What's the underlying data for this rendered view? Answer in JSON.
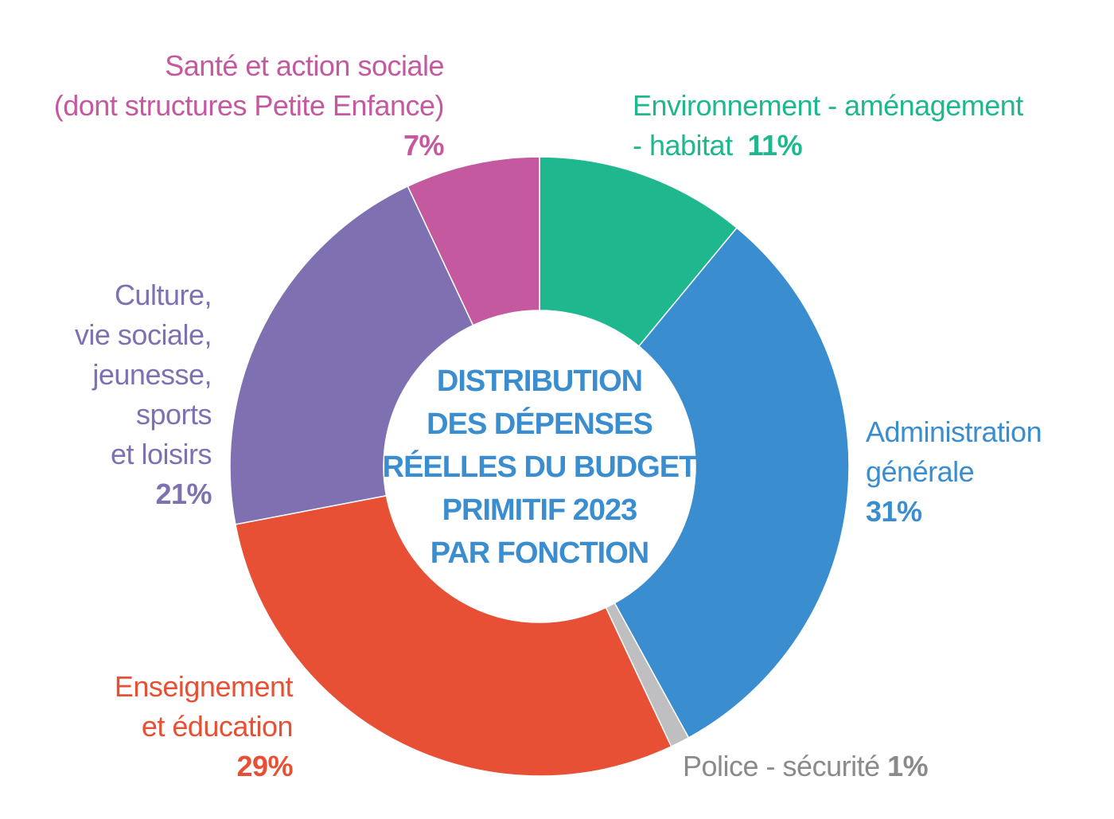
{
  "chart_data": {
    "type": "donut",
    "title_lines": [
      "DISTRIBUTION",
      "DES DÉPENSES",
      "RÉELLES DU BUDGET",
      "PRIMITIF 2023",
      "PAR FONCTION"
    ],
    "slices": [
      {
        "name": "Environnement - aménagement - habitat",
        "label_lines": [
          "Environnement - aménagement",
          "- habitat"
        ],
        "value": 11,
        "display": "11%",
        "color": "#1fb88e"
      },
      {
        "name": "Administration générale",
        "label_lines": [
          "Administration",
          "générale"
        ],
        "value": 31,
        "display": "31%",
        "color": "#3a8dce"
      },
      {
        "name": "Police - sécurité",
        "label_lines": [
          "Police - sécurité"
        ],
        "value": 1,
        "display": "1%",
        "color": "#bfbfc1"
      },
      {
        "name": "Enseignement et éducation",
        "label_lines": [
          "Enseignement",
          "et éducation"
        ],
        "value": 29,
        "display": "29%",
        "color": "#e85035"
      },
      {
        "name": "Culture, vie sociale, jeunesse, sports et loisirs",
        "label_lines": [
          "Culture,",
          "vie sociale,",
          "jeunesse,",
          "sports",
          "et loisirs"
        ],
        "value": 21,
        "display": "21%",
        "color": "#7f70b2"
      },
      {
        "name": "Santé et action sociale (dont structures Petite Enfance)",
        "label_lines": [
          "Santé et action sociale",
          "(dont structures Petite Enfance)"
        ],
        "value": 7,
        "display": "7%",
        "color": "#c459a0"
      }
    ]
  }
}
